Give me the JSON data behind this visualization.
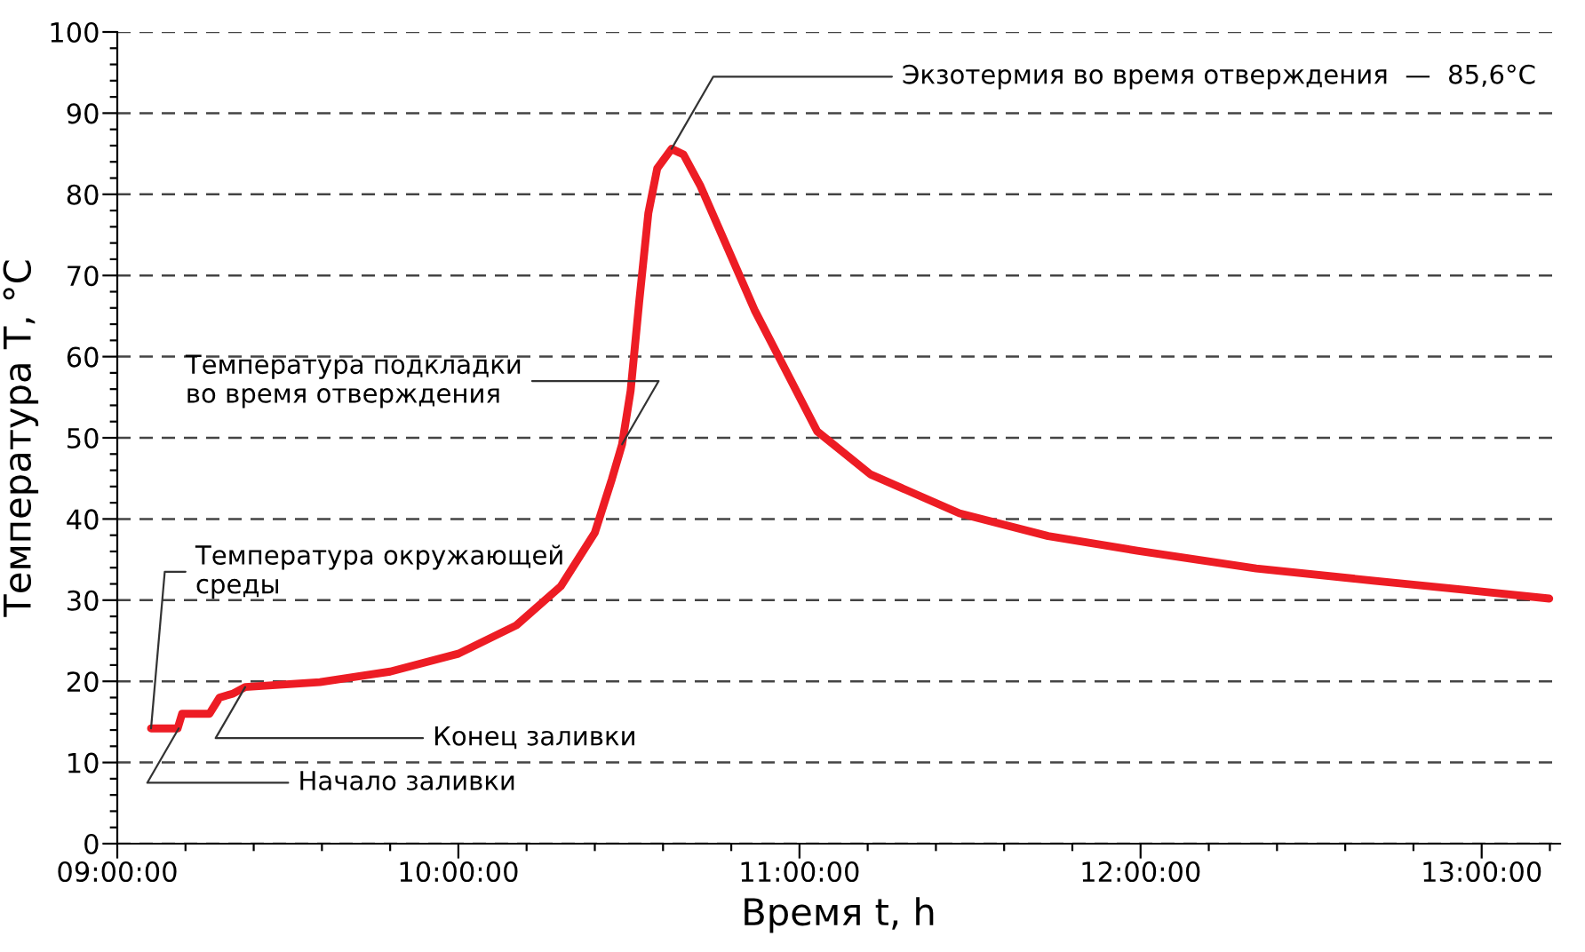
{
  "chart_data": {
    "type": "line",
    "xlabel": "Время t, h",
    "ylabel": "Температура T, °C",
    "series": [
      {
        "color": "#ed1c24",
        "x": [
          9.099,
          9.177,
          9.19,
          9.27,
          9.3,
          9.34,
          9.375,
          9.594,
          9.8,
          10.0,
          10.17,
          10.3,
          10.4,
          10.45,
          10.48,
          10.505,
          10.53,
          10.557,
          10.583,
          10.625,
          10.66,
          10.71,
          10.79,
          10.87,
          10.95,
          11.052,
          11.208,
          11.469,
          11.729,
          11.99,
          12.339,
          12.682,
          12.943,
          13.198
        ],
        "values": [
          14.2,
          14.2,
          16.0,
          16.0,
          18.0,
          18.5,
          19.3,
          19.9,
          21.2,
          23.4,
          26.9,
          31.7,
          38.3,
          44.9,
          49.2,
          55.8,
          66.7,
          77.7,
          83.2,
          85.6,
          84.9,
          81.0,
          73.3,
          65.6,
          59.1,
          50.8,
          45.5,
          40.7,
          37.9,
          36.1,
          33.9,
          32.4,
          31.3,
          30.2
        ]
      }
    ],
    "xlim": [
      9.0,
      13.23
    ],
    "xticks": [
      {
        "value": 9,
        "label": "09:00:00"
      },
      {
        "value": 9.2,
        "label": null
      },
      {
        "value": 9.4,
        "label": null
      },
      {
        "value": 9.6,
        "label": null
      },
      {
        "value": 9.8,
        "label": null
      },
      {
        "value": 10,
        "label": "10:00:00"
      },
      {
        "value": 10.2,
        "label": null
      },
      {
        "value": 10.4,
        "label": null
      },
      {
        "value": 10.6,
        "label": null
      },
      {
        "value": 10.8,
        "label": null
      },
      {
        "value": 11,
        "label": "11:00:00"
      },
      {
        "value": 11.2,
        "label": null
      },
      {
        "value": 11.4,
        "label": null
      },
      {
        "value": 11.6,
        "label": null
      },
      {
        "value": 11.8,
        "label": null
      },
      {
        "value": 12,
        "label": "12:00:00"
      },
      {
        "value": 12.2,
        "label": null
      },
      {
        "value": 12.4,
        "label": null
      },
      {
        "value": 12.6,
        "label": null
      },
      {
        "value": 12.8,
        "label": null
      },
      {
        "value": 13,
        "label": "13:00:00"
      },
      {
        "value": 13.2,
        "label": null
      }
    ],
    "ylim": [
      0,
      100
    ],
    "yticks": [
      0,
      {
        "value": 2,
        "label": null
      },
      {
        "value": 4,
        "label": null
      },
      {
        "value": 6,
        "label": null
      },
      {
        "value": 8,
        "label": null
      },
      10,
      {
        "value": 12,
        "label": null
      },
      {
        "value": 14,
        "label": null
      },
      {
        "value": 16,
        "label": null
      },
      {
        "value": 18,
        "label": null
      },
      20,
      {
        "value": 22,
        "label": null
      },
      {
        "value": 24,
        "label": null
      },
      {
        "value": 26,
        "label": null
      },
      {
        "value": 28,
        "label": null
      },
      30,
      {
        "value": 32,
        "label": null
      },
      {
        "value": 34,
        "label": null
      },
      {
        "value": 36,
        "label": null
      },
      {
        "value": 38,
        "label": null
      },
      40,
      {
        "value": 42,
        "label": null
      },
      {
        "value": 44,
        "label": null
      },
      {
        "value": 46,
        "label": null
      },
      {
        "value": 48,
        "label": null
      },
      50,
      {
        "value": 52,
        "label": null
      },
      {
        "value": 54,
        "label": null
      },
      {
        "value": 56,
        "label": null
      },
      {
        "value": 58,
        "label": null
      },
      60,
      {
        "value": 62,
        "label": null
      },
      {
        "value": 64,
        "label": null
      },
      {
        "value": 66,
        "label": null
      },
      {
        "value": 68,
        "label": null
      },
      70,
      {
        "value": 72,
        "label": null
      },
      {
        "value": 74,
        "label": null
      },
      {
        "value": 76,
        "label": null
      },
      {
        "value": 78,
        "label": null
      },
      80,
      {
        "value": 82,
        "label": null
      },
      {
        "value": 84,
        "label": null
      },
      {
        "value": 86,
        "label": null
      },
      {
        "value": 88,
        "label": null
      },
      90,
      {
        "value": 92,
        "label": null
      },
      {
        "value": 94,
        "label": null
      },
      {
        "value": 96,
        "label": null
      },
      {
        "value": 98,
        "label": null
      },
      100
    ],
    "grid": "y",
    "line_style": "solid",
    "marker": "none",
    "annotations": [
      {
        "text": "Температура окружающей\nсреды",
        "x": 9.099,
        "y": 14.2
      },
      {
        "text": "Начало заливки",
        "x": 9.18,
        "y": 14.2
      },
      {
        "text": "Конец заливки",
        "x": 9.375,
        "y": 19.3
      },
      {
        "text": "Температура подкладки\nво время отверждения",
        "x": 10.48,
        "y": 49.2
      },
      {
        "text": "Экзотермия во время отверждения  —  85,6°C",
        "x": 10.625,
        "y": 85.6
      }
    ]
  }
}
